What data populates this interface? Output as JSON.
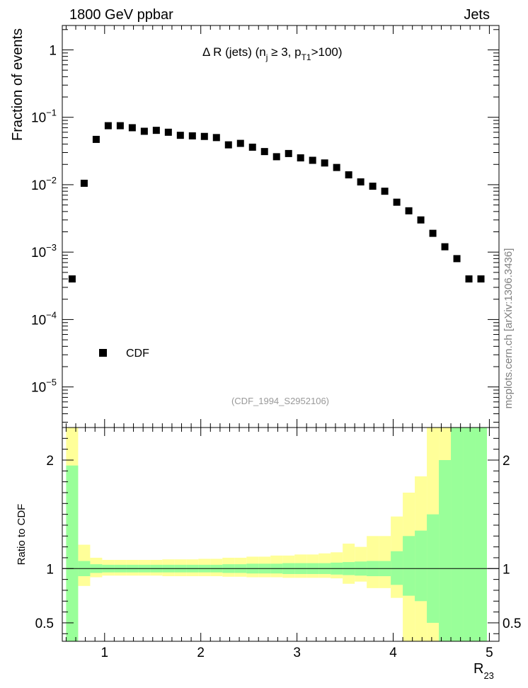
{
  "header": {
    "left": "1800 GeV ppbar",
    "right": "Jets"
  },
  "watermark": "mcplots.cern.ch [arXiv:1306.3436]",
  "reference": "(CDF_1994_S2952106)",
  "colors": {
    "band_inner": "#99ff99",
    "band_outer": "#ffff99",
    "marker": "#000000",
    "reference_text": "#999999",
    "watermark_text": "#808080"
  },
  "chart_data": [
    {
      "id": "main",
      "type": "scatter",
      "yscale": "log",
      "xlim": [
        0.56,
        5.1
      ],
      "ylim": [
        2.5e-06,
        2.3
      ],
      "ylabel": "Fraction of events",
      "title": {
        "main": "Δ R (jets) (n",
        "sub1": "j",
        "mid": " ≥ 3, p",
        "sub2": "T1",
        "end": ">100)"
      },
      "y_ticks": [
        {
          "value": 1,
          "base": "1",
          "exp": ""
        },
        {
          "value": 0.1,
          "base": "10",
          "exp": "−1"
        },
        {
          "value": 0.01,
          "base": "10",
          "exp": "−2"
        },
        {
          "value": 0.001,
          "base": "10",
          "exp": "−3"
        },
        {
          "value": 0.0001,
          "base": "10",
          "exp": "−4"
        },
        {
          "value": 1e-05,
          "base": "10",
          "exp": "−5"
        }
      ],
      "legend": {
        "label": "CDF",
        "placement": "bottom-left"
      },
      "series": [
        {
          "name": "CDF",
          "x": [
            0.6625,
            0.7875,
            0.9125,
            1.0375,
            1.1625,
            1.2875,
            1.4125,
            1.5375,
            1.6625,
            1.7875,
            1.9125,
            2.0375,
            2.1625,
            2.2875,
            2.4125,
            2.5375,
            2.6625,
            2.7875,
            2.9125,
            3.0375,
            3.1625,
            3.2875,
            3.4125,
            3.5375,
            3.6625,
            3.7875,
            3.9125,
            4.0375,
            4.1625,
            4.2875,
            4.4125,
            4.5375,
            4.6625,
            4.7875,
            4.9125
          ],
          "y": [
            0.0004,
            0.0105,
            0.047,
            0.075,
            0.075,
            0.07,
            0.062,
            0.064,
            0.06,
            0.054,
            0.053,
            0.052,
            0.05,
            0.039,
            0.041,
            0.036,
            0.031,
            0.026,
            0.029,
            0.025,
            0.023,
            0.021,
            0.018,
            0.014,
            0.011,
            0.0095,
            0.008,
            0.0055,
            0.0041,
            0.003,
            0.0019,
            0.0012,
            0.0008,
            0.0004,
            0.0004
          ]
        }
      ]
    },
    {
      "id": "ratio",
      "type": "area",
      "xlim": [
        0.56,
        5.1
      ],
      "ylim": [
        0.33,
        2.3
      ],
      "xlabel": {
        "main": "R",
        "sub": "23"
      },
      "ylabel": "Ratio to CDF",
      "x_ticks": [
        "1",
        "2",
        "3",
        "4",
        "5"
      ],
      "x_tick_values": [
        1,
        2,
        3,
        4,
        5
      ],
      "y_ticks": [
        "0.5",
        "1",
        "2"
      ],
      "y_tick_values": [
        0.5,
        1,
        2
      ],
      "reference_line": 1,
      "bin_edges": [
        0.6,
        0.725,
        0.85,
        0.975,
        1.1,
        1.225,
        1.35,
        1.475,
        1.6,
        1.725,
        1.85,
        1.975,
        2.1,
        2.225,
        2.35,
        2.475,
        2.6,
        2.725,
        2.85,
        2.975,
        3.1,
        3.225,
        3.35,
        3.475,
        3.6,
        3.725,
        3.85,
        3.975,
        4.1,
        4.225,
        4.35,
        4.475,
        4.6,
        4.725,
        4.85,
        4.975
      ],
      "bands": {
        "inner_lo": [
          0.0,
          0.93,
          0.96,
          0.965,
          0.965,
          0.965,
          0.965,
          0.965,
          0.965,
          0.965,
          0.965,
          0.965,
          0.965,
          0.96,
          0.96,
          0.955,
          0.955,
          0.955,
          0.95,
          0.95,
          0.95,
          0.95,
          0.945,
          0.94,
          0.935,
          0.93,
          0.93,
          0.85,
          0.75,
          0.7,
          0.5,
          0.3,
          0.2,
          0.2,
          0.2
        ],
        "inner_hi": [
          1.95,
          1.07,
          1.04,
          1.035,
          1.035,
          1.035,
          1.035,
          1.035,
          1.035,
          1.035,
          1.035,
          1.035,
          1.035,
          1.04,
          1.04,
          1.045,
          1.045,
          1.045,
          1.05,
          1.05,
          1.05,
          1.05,
          1.055,
          1.06,
          1.065,
          1.07,
          1.07,
          1.16,
          1.3,
          1.35,
          1.5,
          2.0,
          2.3,
          2.3,
          2.3
        ],
        "outer_lo": [
          0.0,
          0.84,
          0.92,
          0.935,
          0.935,
          0.935,
          0.935,
          0.935,
          0.93,
          0.93,
          0.93,
          0.93,
          0.93,
          0.925,
          0.925,
          0.92,
          0.92,
          0.92,
          0.915,
          0.915,
          0.915,
          0.915,
          0.91,
          0.86,
          0.88,
          0.82,
          0.82,
          0.73,
          0.2,
          0.2,
          0.2,
          0.2,
          0.2,
          0.2,
          0.2
        ],
        "outer_hi": [
          2.3,
          1.22,
          1.1,
          1.08,
          1.08,
          1.08,
          1.08,
          1.08,
          1.085,
          1.085,
          1.085,
          1.09,
          1.09,
          1.1,
          1.1,
          1.11,
          1.11,
          1.12,
          1.12,
          1.13,
          1.13,
          1.14,
          1.15,
          1.23,
          1.2,
          1.3,
          1.3,
          1.48,
          1.7,
          1.85,
          2.3,
          2.3,
          2.3,
          2.3,
          2.3
        ]
      }
    }
  ]
}
